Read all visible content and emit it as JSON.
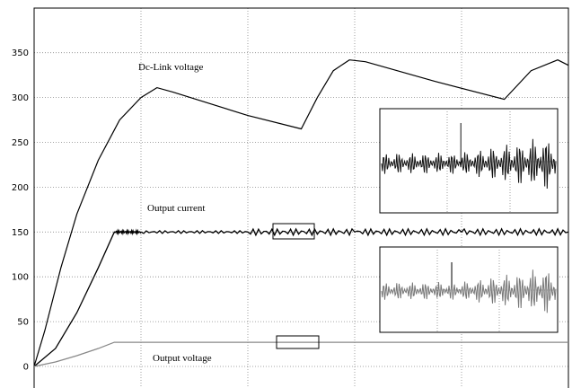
{
  "chart_data": {
    "type": "line",
    "ylim": [
      0,
      400
    ],
    "xlim": [
      0,
      10
    ],
    "y_ticks": [
      0,
      50,
      100,
      150,
      200,
      250,
      300,
      350
    ],
    "grid": true,
    "annotations": [
      "Dc-Link voltage",
      "Output current",
      "Output voltage"
    ],
    "series": [
      {
        "x": [
          0,
          0.2,
          0.5,
          0.8,
          1.2,
          1.6,
          2.0,
          2.3,
          2.6,
          4.0,
          5.0,
          5.3,
          5.6,
          5.9,
          6.2,
          7.5,
          8.8,
          9.3,
          9.8,
          10
        ],
        "values": [
          0,
          40,
          110,
          170,
          230,
          275,
          300,
          311,
          306,
          280,
          265,
          300,
          330,
          342,
          340,
          318,
          298,
          330,
          342,
          336
        ]
      },
      {
        "x": [
          0,
          0.4,
          0.8,
          1.2,
          1.5,
          2.0,
          4.0,
          6.0,
          8.0,
          10
        ],
        "values": [
          0,
          20,
          60,
          110,
          150,
          150,
          150,
          150,
          150,
          150
        ]
      },
      {
        "x": [
          0,
          0.4,
          0.8,
          1.2,
          1.5,
          2.0,
          4.0,
          6.0,
          8.0,
          10
        ],
        "values": [
          0,
          5,
          12,
          20,
          27,
          27,
          27,
          27,
          27,
          27
        ]
      }
    ]
  }
}
